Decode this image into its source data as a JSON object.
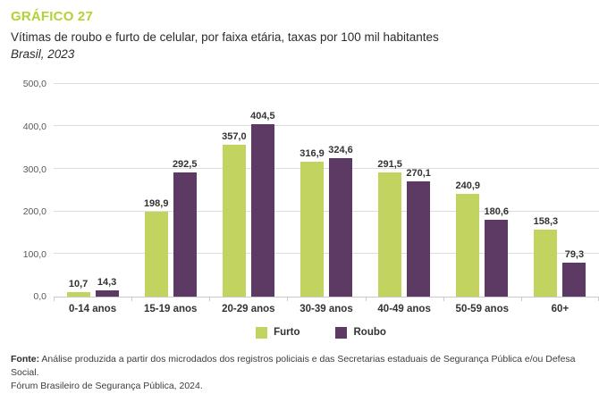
{
  "header": {
    "kicker": "GRÁFICO 27",
    "title": "Vítimas de roubo e furto de celular, por faixa etária, taxas por 100 mil habitantes",
    "subtitle": "Brasil, 2023"
  },
  "colors": {
    "kicker_green": "#b2d235",
    "furto_green": "#c2d45f",
    "roubo_purple": "#5c3a64",
    "gridline_gray": "#dcdcdc",
    "axis_text_gray": "#595959"
  },
  "chart_data": {
    "type": "bar",
    "title": "Vítimas de roubo e furto de celular, por faixa etária, taxas por 100 mil habitantes — Brasil, 2023",
    "xlabel": "",
    "ylabel": "",
    "ylim": [
      0,
      500
    ],
    "grid": true,
    "legend_position": "bottom",
    "categories": [
      "0-14 anos",
      "15-19 anos",
      "20-29 anos",
      "30-39 anos",
      "40-49 anos",
      "50-59 anos",
      "60+"
    ],
    "yticks": [
      0,
      100,
      200,
      300,
      400,
      500
    ],
    "ytick_labels": [
      "0,0",
      "100,0",
      "200,0",
      "300,0",
      "400,0",
      "500,0"
    ],
    "series": [
      {
        "name": "Furto",
        "color": "#c2d45f",
        "values": [
          10.7,
          198.9,
          357.0,
          316.9,
          291.5,
          240.9,
          158.3
        ],
        "labels": [
          "10,7",
          "198,9",
          "357,0",
          "316,9",
          "291,5",
          "240,9",
          "158,3"
        ]
      },
      {
        "name": "Roubo",
        "color": "#5c3a64",
        "values": [
          14.3,
          292.5,
          404.5,
          324.6,
          270.1,
          180.6,
          79.3
        ],
        "labels": [
          "14,3",
          "292,5",
          "404,5",
          "324,6",
          "270,1",
          "180,6",
          "79,3"
        ]
      }
    ]
  },
  "footer": {
    "label": "Fonte:",
    "line1": "Análise produzida a partir dos microdados dos registros policiais e das Secretarias estaduais de Segurança Pública e/ou Defesa Social.",
    "line2": "Fórum Brasileiro de Segurança Pública, 2024."
  }
}
